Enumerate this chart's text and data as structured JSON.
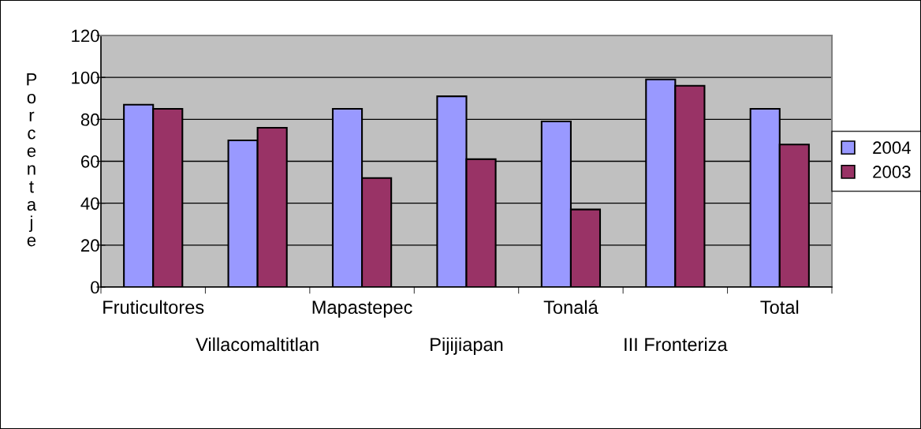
{
  "chart_data": {
    "type": "bar",
    "ylabel": "Porcentaje",
    "categories": [
      "Fruticultores",
      "Villacomaltitlan",
      "Mapastepec",
      "Pijijiapan",
      "Tonalá",
      "III Fronteriza",
      "Total"
    ],
    "series": [
      {
        "name": "2004",
        "color": "#9999ff",
        "values": [
          87,
          70,
          85,
          91,
          79,
          99,
          85
        ]
      },
      {
        "name": "2003",
        "color": "#993366",
        "values": [
          85,
          76,
          52,
          61,
          37,
          96,
          68
        ]
      }
    ],
    "ylim": [
      0,
      120
    ],
    "yticks": [
      0,
      20,
      40,
      60,
      80,
      100,
      120
    ],
    "grid": "y",
    "legend": "right"
  }
}
